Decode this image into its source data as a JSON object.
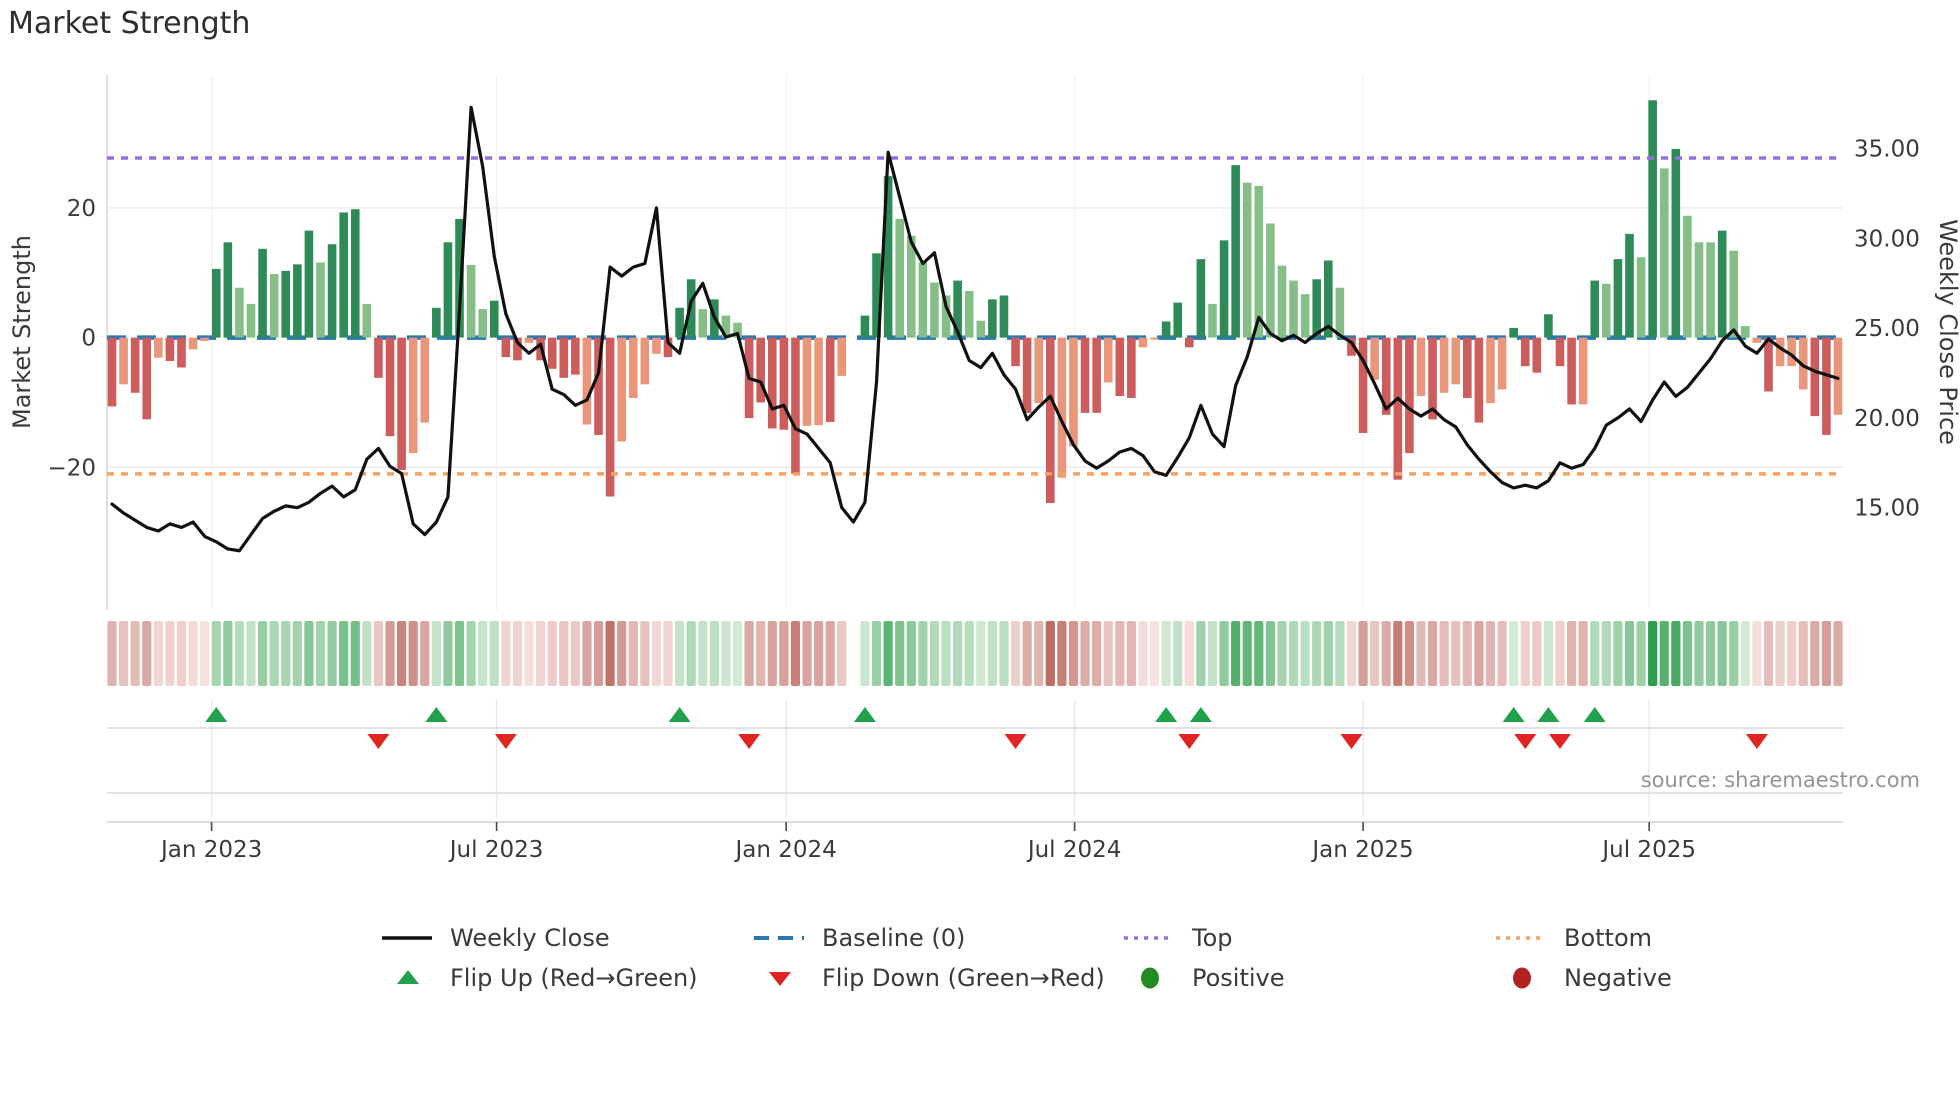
{
  "title": "Market Strength",
  "source": "source: sharemaestro.com",
  "axes": {
    "left_label": "Market Strength",
    "right_label": "Weekly Close Price",
    "left_ticks": [
      {
        "v": 20,
        "label": "20"
      },
      {
        "v": 0,
        "label": "0"
      },
      {
        "v": -20,
        "label": "−20"
      }
    ],
    "right_ticks": [
      {
        "v": 35,
        "label": "35.00"
      },
      {
        "v": 30,
        "label": "30.00"
      },
      {
        "v": 25,
        "label": "25.00"
      },
      {
        "v": 20,
        "label": "20.00"
      },
      {
        "v": 15,
        "label": "15.00"
      }
    ],
    "x_ticks": [
      {
        "week": 8.6,
        "label": "Jan 2023"
      },
      {
        "week": 33.2,
        "label": "Jul 2023"
      },
      {
        "week": 58.2,
        "label": "Jan 2024"
      },
      {
        "week": 83.1,
        "label": "Jul 2024"
      },
      {
        "week": 108.0,
        "label": "Jan 2025"
      },
      {
        "week": 132.7,
        "label": "Jul 2025"
      }
    ]
  },
  "legend": {
    "items": [
      {
        "id": "weekly-close",
        "label": "Weekly Close",
        "swatch": "line",
        "color": "#111111"
      },
      {
        "id": "baseline",
        "label": "Baseline (0)",
        "swatch": "dash",
        "color": "#2878b5"
      },
      {
        "id": "top",
        "label": "Top",
        "swatch": "dot",
        "color": "#9370db"
      },
      {
        "id": "bottom",
        "label": "Bottom",
        "swatch": "dot",
        "color": "#f4a460"
      },
      {
        "id": "flip-up",
        "label": "Flip Up (Red→Green)",
        "swatch": "tri-up",
        "color": "#21a14b"
      },
      {
        "id": "flip-down",
        "label": "Flip Down (Green→Red)",
        "swatch": "tri-down",
        "color": "#e02420"
      },
      {
        "id": "positive",
        "label": "Positive",
        "swatch": "circle",
        "color": "#228b22"
      },
      {
        "id": "negative",
        "label": "Negative",
        "swatch": "circle",
        "color": "#b22222"
      }
    ]
  },
  "colors": {
    "bar_dark_green": "#2e8b57",
    "bar_light_green": "#85be87",
    "bar_dark_red": "#cd5c5c",
    "bar_light_red": "#e9967a",
    "line": "#111111",
    "baseline": "#2878b5",
    "top_line": "#9370db",
    "bottom_line": "#f4a460",
    "flip_up": "#21a14b",
    "flip_down": "#e02420",
    "heat_pos_lo": "#ddeedd",
    "heat_pos_hi": "#2c9e4d",
    "heat_neg_lo": "#f7e3e1",
    "heat_neg_hi": "#bd6a62"
  },
  "chart_data": {
    "type": "bar",
    "subtype": "weekly strength histogram + weekly close line, dual axis",
    "title": "Market Strength",
    "xlabel": "",
    "ylabel_left": "Market Strength",
    "ylabel_right": "Weekly Close Price",
    "baseline": 0,
    "top_threshold_strength": 27.7,
    "bottom_threshold_strength": -21.0,
    "ylim_strength": [
      -42.0,
      40.5
    ],
    "ylim_price": [
      9.3,
      39.1
    ],
    "grid": "horizontal at 20 and -20, faint vertical at half-year ticks",
    "legend_position": "bottom center, 2 rows x 4 columns",
    "weeks": 150,
    "bars_strength_with_shade": [
      "-10.6d",
      "-7.2l",
      "-8.5d",
      "-12.6d",
      "-3.1l",
      "-3.6d",
      "-4.6d",
      "-1.8l",
      "-0.5l",
      "10.6d",
      "14.7d",
      "7.7l",
      "5.2l",
      "13.7d",
      "9.8l",
      "10.3d",
      "11.3d",
      "16.5d",
      "11.6l",
      "14.4d",
      "19.3d",
      "19.8d",
      "5.2l",
      "-6.2d",
      "-15.2d",
      "-20.4d",
      "-17.8l",
      "-13.1l",
      "4.6d",
      "14.7d",
      "18.3d",
      "11.2l",
      "4.4l",
      "5.7d",
      "-3.0d",
      "-3.5d",
      "-0.8l",
      "-3.5d",
      "-4.8d",
      "-6.2d",
      "-5.7d",
      "-13.4l",
      "-15.0d",
      "-24.5d",
      "-16.0l",
      "-9.3l",
      "-7.2l",
      "-2.5l",
      "-3.0d",
      "4.6d",
      "9.0d",
      "4.4l",
      "5.9d",
      "3.4l",
      "2.3l",
      "-12.4d",
      "-10.0d",
      "-14.0d",
      "-14.2d",
      "-21.0d",
      "-13.6l",
      "-13.5l",
      "-13.0d",
      "-5.9l",
      "x",
      "3.4d",
      "13.0d",
      "24.9d",
      "18.3l",
      "15.7l",
      "11.6l",
      "8.5l",
      "6.5l",
      "8.8d",
      "7.2l",
      "2.6l",
      "5.9d",
      "6.5d",
      "-4.4d",
      "-11.6d",
      "-10.1l",
      "-25.5d",
      "-21.6l",
      "-16.8l",
      "-11.6d",
      "-11.6d",
      "-6.9l",
      "-9.0d",
      "-9.3d",
      "-1.5l",
      "-0.3l",
      "2.5d",
      "5.4d",
      "-1.5d",
      "12.1d",
      "5.2l",
      "15.0d",
      "26.6d",
      "23.9l",
      "23.4l",
      "17.6l",
      "11.1l",
      "8.8l",
      "6.7l",
      "9.0d",
      "11.9d",
      "7.7l",
      "-2.8d",
      "-14.7d",
      "-6.5l",
      "-11.9d",
      "-21.9d",
      "-17.8d",
      "-9.0l",
      "-12.6d",
      "-8.5l",
      "-7.2l",
      "-9.3d",
      "-13.1d",
      "-10.1l",
      "-8.0l",
      "1.5d",
      "-4.4d",
      "-5.4d",
      "3.6d",
      "-4.4d",
      "-10.3d",
      "-10.3l",
      "8.8d",
      "8.3l",
      "12.1d",
      "16.0d",
      "12.4l",
      "36.6d",
      "26.1l",
      "29.1d",
      "18.8l",
      "14.7l",
      "14.7l",
      "16.5d",
      "13.4l",
      "1.8l",
      "-0.8l",
      "-8.3d",
      "-4.4l",
      "-4.4l",
      "-8.0l",
      "-12.1d",
      "-15.0d",
      "-11.9l"
    ],
    "weekly_close_price": [
      15.2,
      14.7,
      14.3,
      13.9,
      13.7,
      14.1,
      13.9,
      14.2,
      13.4,
      13.1,
      12.7,
      12.6,
      13.5,
      14.4,
      14.8,
      15.1,
      15.0,
      15.3,
      15.8,
      16.2,
      15.6,
      16.0,
      17.7,
      18.3,
      17.3,
      16.9,
      14.1,
      13.5,
      14.2,
      15.6,
      26.0,
      37.3,
      34.0,
      29.0,
      25.8,
      24.2,
      23.6,
      24.1,
      21.6,
      21.3,
      20.7,
      21.0,
      22.5,
      28.4,
      27.9,
      28.4,
      28.6,
      31.7,
      24.2,
      23.6,
      26.5,
      27.5,
      25.6,
      24.5,
      24.7,
      22.2,
      22.0,
      20.5,
      20.7,
      19.4,
      19.1,
      18.3,
      17.5,
      15.0,
      14.2,
      15.3,
      22.0,
      34.8,
      32.3,
      29.8,
      28.6,
      29.2,
      26.2,
      24.8,
      23.2,
      22.8,
      23.6,
      22.4,
      21.6,
      19.9,
      20.6,
      21.2,
      19.8,
      18.5,
      17.6,
      17.2,
      17.6,
      18.1,
      18.3,
      17.9,
      17.0,
      16.8,
      17.8,
      18.9,
      20.7,
      19.1,
      18.4,
      21.8,
      23.4,
      25.6,
      24.7,
      24.3,
      24.6,
      24.2,
      24.7,
      25.1,
      24.6,
      24.2,
      23.2,
      21.9,
      20.5,
      21.1,
      20.5,
      20.1,
      20.5,
      19.9,
      19.5,
      18.5,
      17.7,
      17.0,
      16.4,
      16.1,
      16.25,
      16.1,
      16.5,
      17.5,
      17.2,
      17.4,
      18.3,
      19.6,
      20.0,
      20.5,
      19.8,
      21.0,
      22.0,
      21.2,
      21.7,
      22.5,
      23.3,
      24.3,
      24.9,
      24.0,
      23.6,
      24.4,
      23.9,
      23.5,
      22.9,
      22.6,
      22.4,
      22.2
    ],
    "flip_up_weeks": [
      9,
      28,
      49,
      65,
      91,
      94,
      121,
      124,
      128
    ],
    "flip_down_weeks": [
      23,
      34,
      55,
      78,
      93,
      107,
      122,
      125,
      142
    ],
    "missing_weeks": [
      64
    ],
    "heatmap": "one cell per week, color mirrors bar sign and magnitude"
  }
}
